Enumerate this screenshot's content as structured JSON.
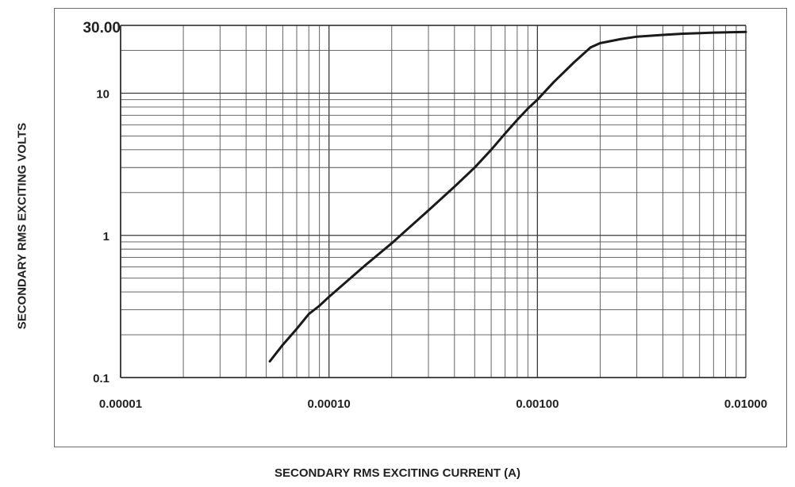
{
  "chart_data": {
    "type": "line",
    "xlabel": "SECONDARY RMS EXCITING CURRENT (A)",
    "ylabel": "SECONDARY RMS EXCITING VOLTS",
    "xscale": "log",
    "yscale": "log",
    "xlim": [
      1e-05,
      0.01
    ],
    "ylim": [
      0.1,
      30
    ],
    "grid": true,
    "x_tick_labels": [
      "0.00001",
      "0.00010",
      "0.00100",
      "0.01000"
    ],
    "x_tick_values": [
      1e-05,
      0.0001,
      0.001,
      0.01
    ],
    "y_tick_labels": [
      "0.1",
      "1",
      "10",
      "30.00"
    ],
    "y_tick_values": [
      0.1,
      1,
      10,
      30
    ],
    "series": [
      {
        "color": "#1a1a1a",
        "x": [
          5.2e-05,
          6e-05,
          7e-05,
          8e-05,
          9e-05,
          0.0001,
          0.00015,
          0.0002,
          0.0003,
          0.0004,
          0.0005,
          0.0006,
          0.0007,
          0.0008,
          0.0009,
          0.001,
          0.0012,
          0.0015,
          0.0018,
          0.002,
          0.0025,
          0.003,
          0.004,
          0.005,
          0.007,
          0.01
        ],
        "y": [
          0.13,
          0.17,
          0.22,
          0.28,
          0.32,
          0.37,
          0.62,
          0.88,
          1.5,
          2.2,
          3.0,
          4.0,
          5.2,
          6.5,
          7.8,
          9.0,
          12,
          16.5,
          21,
          22.5,
          24,
          25,
          25.7,
          26.2,
          26.7,
          27
        ]
      }
    ]
  }
}
